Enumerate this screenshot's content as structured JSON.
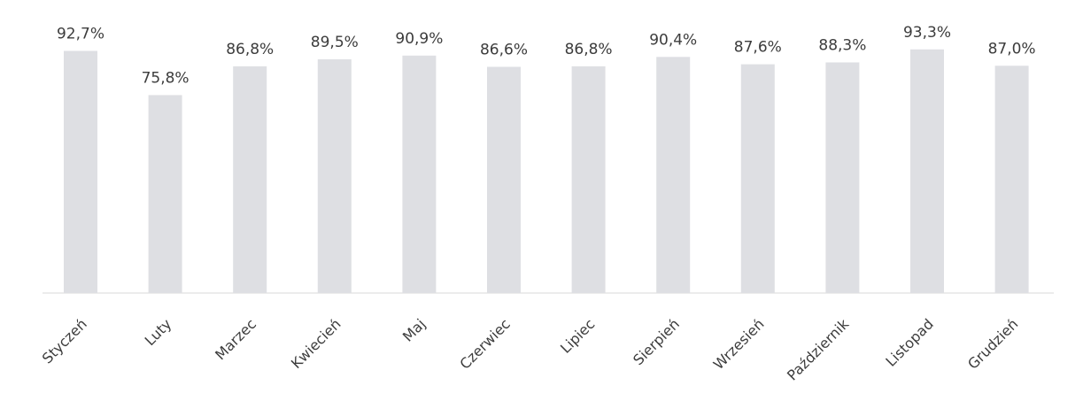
{
  "chart_data": {
    "type": "bar",
    "categories": [
      "Styczeń",
      "Luty",
      "Marzec",
      "Kwiecień",
      "Maj",
      "Czerwiec",
      "Lipiec",
      "Sierpień",
      "Wrzesień",
      "Październik",
      "Listopad",
      "Grudzień"
    ],
    "values": [
      92.7,
      75.8,
      86.8,
      89.5,
      90.9,
      86.6,
      86.8,
      90.4,
      87.6,
      88.3,
      93.3,
      87.0
    ],
    "data_labels": [
      "92,7%",
      "75,8%",
      "86,8%",
      "89,5%",
      "90,9%",
      "86,6%",
      "86,8%",
      "90,4%",
      "87,6%",
      "88,3%",
      "93,3%",
      "87,0%"
    ],
    "title": "",
    "xlabel": "",
    "ylabel": "",
    "ylim": [
      0,
      100
    ],
    "grid": false,
    "legend": "none",
    "colors": {
      "bar": "#dedfe3",
      "bar_edge": "#cfd0d6",
      "text": "#3c3c3c",
      "axis": "#d9d9d9"
    }
  }
}
